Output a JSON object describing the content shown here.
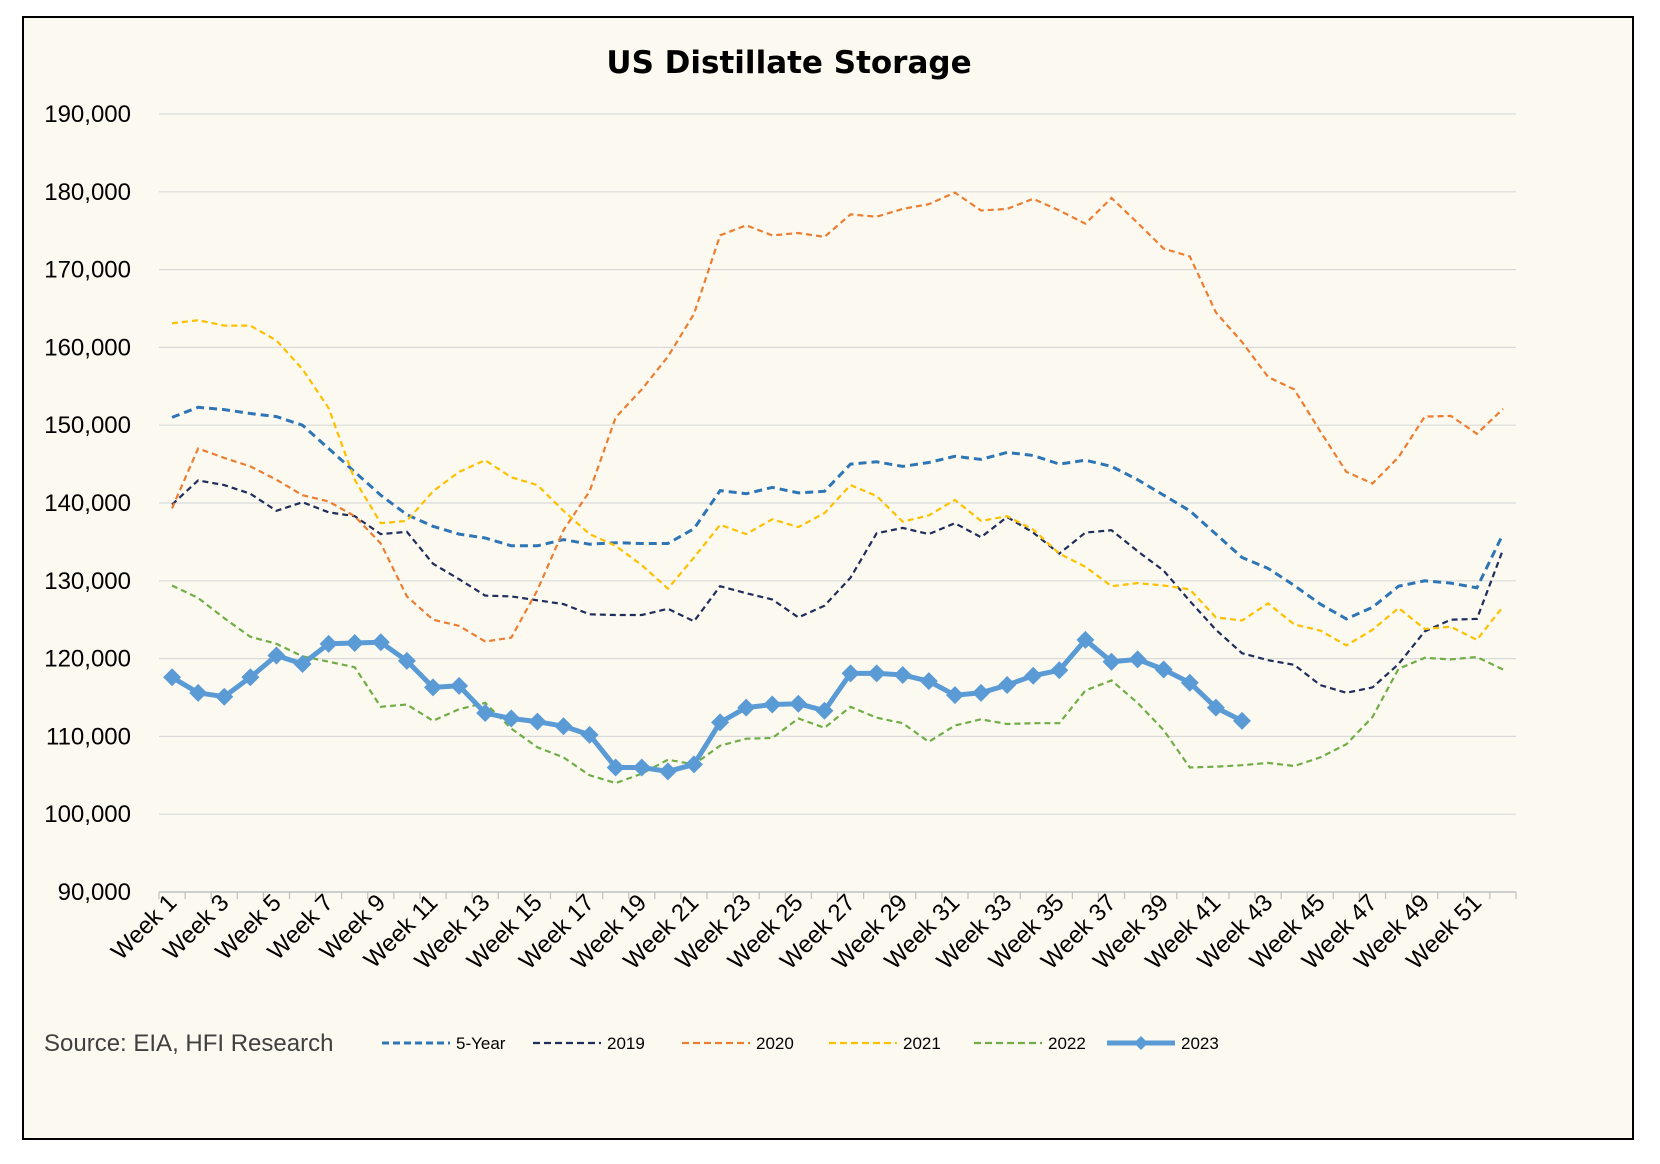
{
  "chart_data": {
    "type": "line",
    "title": "US Distillate Storage",
    "source": "Source: EIA, HFI Research",
    "ylim": [
      90000,
      190000
    ],
    "yticks": [
      90000,
      100000,
      110000,
      120000,
      130000,
      140000,
      150000,
      160000,
      170000,
      180000,
      190000
    ],
    "ytick_labels": [
      "90,000",
      "100,000",
      "110,000",
      "120,000",
      "130,000",
      "140,000",
      "150,000",
      "160,000",
      "170,000",
      "180,000",
      "190,000"
    ],
    "x_tick_labels": [
      "Week 1",
      "Week 3",
      "Week 5",
      "Week 7",
      "Week 9",
      "Week 11",
      "Week 13",
      "Week 15",
      "Week 17",
      "Week 19",
      "Week 21",
      "Week 23",
      "Week 25",
      "Week 27",
      "Week 29",
      "Week 31",
      "Week 33",
      "Week 35",
      "Week 37",
      "Week 39",
      "Week 41",
      "Week 43",
      "Week 45",
      "Week 47",
      "Week 49",
      "Week 51"
    ],
    "grid": "horizontal",
    "legend_position": "bottom",
    "series": [
      {
        "name": "5-Year",
        "color": "#2e75b6",
        "style": "dashed",
        "values": [
          151000,
          152300,
          152000,
          151500,
          151100,
          150000,
          147000,
          144000,
          141000,
          138500,
          137000,
          136000,
          135500,
          134500,
          134500,
          135300,
          134700,
          134900,
          134800,
          134800,
          136700,
          141600,
          141200,
          142000,
          141300,
          141500,
          145000,
          145300,
          144700,
          145200,
          146000,
          145600,
          146500,
          146100,
          145000,
          145500,
          144700,
          143000,
          141000,
          139000,
          136000,
          133000,
          131600,
          129400,
          127000,
          125100,
          126600,
          129300,
          130000,
          129700,
          129100,
          136000
        ]
      },
      {
        "name": "2019",
        "color": "#1f2d5c",
        "style": "dashed",
        "values": [
          139800,
          142900,
          142300,
          141200,
          139000,
          140100,
          138800,
          138300,
          136000,
          136300,
          132200,
          130200,
          128100,
          128000,
          127500,
          127000,
          125700,
          125600,
          125600,
          126400,
          124800,
          129300,
          128400,
          127600,
          125300,
          126800,
          130400,
          136100,
          136800,
          136000,
          137400,
          135600,
          138200,
          136200,
          133500,
          136200,
          136500,
          133800,
          131300,
          127400,
          123700,
          120700,
          119800,
          119200,
          116600,
          115600,
          116300,
          119300,
          123500,
          125000,
          125100,
          134000
        ]
      },
      {
        "name": "2020",
        "color": "#ed7d31",
        "style": "dashed",
        "values": [
          139300,
          147000,
          145800,
          144700,
          143000,
          141000,
          140200,
          138300,
          134800,
          128000,
          125000,
          124200,
          122200,
          122700,
          128800,
          136500,
          141500,
          151000,
          154600,
          158800,
          164300,
          174400,
          175700,
          174400,
          174700,
          174200,
          177100,
          176800,
          177800,
          178400,
          179900,
          177600,
          177800,
          179100,
          177600,
          175900,
          179200,
          176000,
          172700,
          171700,
          164500,
          160700,
          156200,
          154600,
          149200,
          144000,
          142500,
          145900,
          151100,
          151200,
          148900,
          152100
        ]
      },
      {
        "name": "2021",
        "color": "#ffc000",
        "style": "dashed",
        "values": [
          163100,
          163500,
          162800,
          162800,
          160900,
          157200,
          152200,
          143000,
          137400,
          137700,
          141500,
          144000,
          145500,
          143300,
          142300,
          139000,
          136000,
          134500,
          132000,
          129000,
          133000,
          137200,
          136000,
          137900,
          136900,
          138700,
          142300,
          140900,
          137600,
          138400,
          140400,
          137700,
          138300,
          136600,
          133500,
          131800,
          129300,
          129700,
          129400,
          128900,
          125300,
          124900,
          127100,
          124400,
          123600,
          121700,
          123700,
          126500,
          123800,
          124100,
          122400,
          126700
        ]
      },
      {
        "name": "2022",
        "color": "#70ad47",
        "style": "dashed",
        "values": [
          129400,
          127800,
          125200,
          122800,
          121900,
          120300,
          119600,
          118900,
          113800,
          114100,
          112000,
          113500,
          114300,
          111000,
          108600,
          107300,
          105000,
          104000,
          105200,
          107000,
          106400,
          108800,
          109700,
          109800,
          112300,
          111100,
          113800,
          112400,
          111700,
          109300,
          111400,
          112200,
          111600,
          111700,
          111700,
          115900,
          117200,
          114300,
          110800,
          106000,
          106100,
          106300,
          106600,
          106200,
          107300,
          109000,
          112500,
          118700,
          120100,
          119900,
          120200,
          118600
        ]
      },
      {
        "name": "2023",
        "color": "#5b9bd5",
        "style": "solid-diamond",
        "values": [
          117600,
          115600,
          115100,
          117600,
          120400,
          119300,
          121900,
          122000,
          122100,
          119700,
          116300,
          116500,
          113000,
          112300,
          111900,
          111300,
          110200,
          106000,
          106000,
          105500,
          106400,
          111800,
          113700,
          114100,
          114200,
          113300,
          118100,
          118100,
          117900,
          117100,
          115300,
          115600,
          116600,
          117800,
          118500,
          122400,
          119600,
          119900,
          118600,
          116900,
          113700,
          112000
        ]
      }
    ]
  }
}
